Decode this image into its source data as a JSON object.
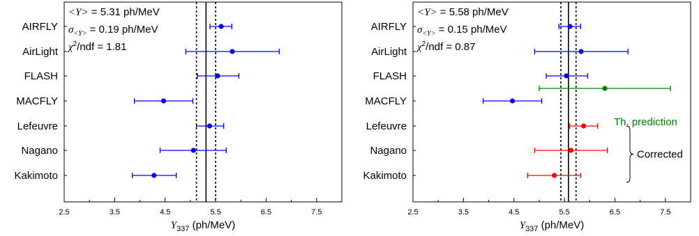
{
  "chart_data": [
    {
      "type": "scatter",
      "subtype": "forest-plot-with-horizontal-error-bars",
      "xlabel": "Y337 (ph/MeV)",
      "xlabel_main": "Y",
      "xlabel_sub": "337",
      "xlabel_unit": " (ph/MeV)",
      "xlim": [
        2.5,
        8.0
      ],
      "xticks": [
        2.5,
        3.5,
        4.5,
        5.5,
        6.5,
        7.5
      ],
      "xtick_labels": [
        "2.5",
        "3.5",
        "4.5",
        "5.5",
        "6.5",
        "7.5"
      ],
      "categories": [
        "AIRFLY",
        "AirLight",
        "FLASH",
        "MACFLY",
        "Lefeuvre",
        "Nagano",
        "Kakimoto"
      ],
      "points": [
        {
          "label": "AIRFLY",
          "value": 5.61,
          "xerr_low": 5.39,
          "xerr_high": 5.82,
          "color": "#0000ff"
        },
        {
          "label": "AirLight",
          "value": 5.83,
          "xerr_low": 4.91,
          "xerr_high": 6.76,
          "color": "#0000ff"
        },
        {
          "label": "FLASH",
          "value": 5.54,
          "xerr_low": 5.14,
          "xerr_high": 5.96,
          "color": "#0000ff"
        },
        {
          "label": "MACFLY",
          "value": 4.47,
          "xerr_low": 3.89,
          "xerr_high": 5.05,
          "color": "#0000ff"
        },
        {
          "label": "Lefeuvre",
          "value": 5.38,
          "xerr_low": 5.12,
          "xerr_high": 5.66,
          "color": "#0000ff"
        },
        {
          "label": "Nagano",
          "value": 5.06,
          "xerr_low": 4.4,
          "xerr_high": 5.71,
          "color": "#0000ff"
        },
        {
          "label": "Kakimoto",
          "value": 4.28,
          "xerr_low": 3.85,
          "xerr_high": 4.72,
          "color": "#0000ff"
        }
      ],
      "mean": 5.31,
      "mean_minus_sigma": 5.12,
      "mean_plus_sigma": 5.5,
      "stats": {
        "mean_text": " = 5.31 ph/MeV",
        "sigma_text": " = 0.19 ph/MeV",
        "chi2_text": "/ndf  = 1.81"
      }
    },
    {
      "type": "scatter",
      "subtype": "forest-plot-with-horizontal-error-bars",
      "xlabel": "Y337 (ph/MeV)",
      "xlabel_main": "Y",
      "xlabel_sub": "337",
      "xlabel_unit": " (ph/MeV)",
      "xlim": [
        2.5,
        8.0
      ],
      "xticks": [
        2.5,
        3.5,
        4.5,
        5.5,
        6.5,
        7.5
      ],
      "xtick_labels": [
        "2.5",
        "3.5",
        "4.5",
        "5.5",
        "6.5",
        "7.5"
      ],
      "categories": [
        "AIRFLY",
        "AirLight",
        "FLASH",
        "MACFLY",
        "Lefeuvre",
        "Nagano",
        "Kakimoto"
      ],
      "points": [
        {
          "label": "AIRFLY",
          "value": 5.61,
          "xerr_low": 5.39,
          "xerr_high": 5.82,
          "color": "#0000ff"
        },
        {
          "label": "AirLight",
          "value": 5.83,
          "xerr_low": 4.91,
          "xerr_high": 6.76,
          "color": "#0000ff"
        },
        {
          "label": "FLASH",
          "value": 5.54,
          "xerr_low": 5.14,
          "xerr_high": 5.96,
          "color": "#0000ff"
        },
        {
          "label": "MACFLY",
          "value": 4.47,
          "xerr_low": 3.89,
          "xerr_high": 5.05,
          "color": "#0000ff"
        },
        {
          "label": "Lefeuvre",
          "value": 5.88,
          "xerr_low": 5.6,
          "xerr_high": 6.16,
          "color": "#ff0000"
        },
        {
          "label": "Nagano",
          "value": 5.63,
          "xerr_low": 4.91,
          "xerr_high": 6.35,
          "color": "#ff0000"
        },
        {
          "label": "Kakimoto",
          "value": 5.3,
          "xerr_low": 4.77,
          "xerr_high": 5.82,
          "color": "#ff0000"
        }
      ],
      "extra_points": [
        {
          "label": "Th. prediction",
          "y_between": [
            "FLASH",
            "MACFLY"
          ],
          "value": 6.3,
          "xerr_low": 5.0,
          "xerr_high": 7.6,
          "color": "#008000"
        }
      ],
      "mean": 5.58,
      "mean_minus_sigma": 5.43,
      "mean_plus_sigma": 5.73,
      "stats": {
        "mean_text": " = 5.58 ph/MeV",
        "sigma_text": " = 0.15 ph/MeV",
        "chi2_text": "/ndf  = 0.87"
      },
      "annotations": {
        "prediction": "Th. prediction",
        "corrected": "Corrected",
        "corrected_group": [
          "Lefeuvre",
          "Nagano",
          "Kakimoto"
        ]
      }
    }
  ],
  "symbols": {
    "mean": "<Y>",
    "sigma": "σ",
    "sigma_sub": "<Y>",
    "chi": "χ",
    "chi_sup": "2"
  },
  "colors": {
    "original": "#0000ff",
    "corrected": "#ff0000",
    "prediction": "#008000",
    "lines": "#000000"
  }
}
